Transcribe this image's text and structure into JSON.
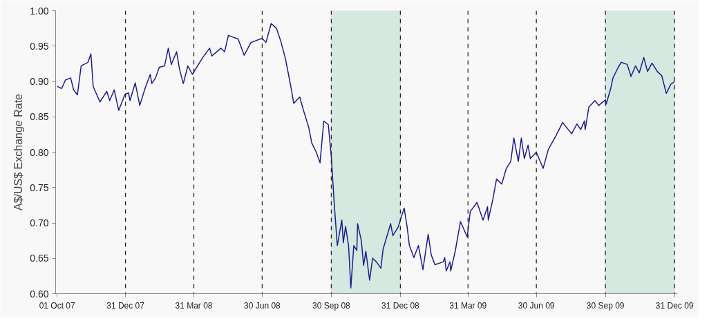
{
  "chart_data": {
    "type": "line",
    "ylabel": "A$/US$ Exchange Rate",
    "x": [
      "2007-10-01",
      "2007-10-07",
      "2007-10-12",
      "2007-10-19",
      "2007-10-23",
      "2007-10-28",
      "2007-11-02",
      "2007-11-11",
      "2007-11-15",
      "2007-11-18",
      "2007-11-27",
      "2007-12-06",
      "2007-12-10",
      "2007-12-16",
      "2007-12-22",
      "2007-12-30",
      "2008-01-04",
      "2008-01-06",
      "2008-01-13",
      "2008-01-19",
      "2008-01-26",
      "2008-02-02",
      "2008-02-04",
      "2008-02-09",
      "2008-02-14",
      "2008-02-21",
      "2008-02-26",
      "2008-03-01",
      "2008-03-08",
      "2008-03-12",
      "2008-03-17",
      "2008-03-23",
      "2008-03-29",
      "2008-04-12",
      "2008-04-21",
      "2008-04-24",
      "2008-05-06",
      "2008-05-11",
      "2008-05-16",
      "2008-05-29",
      "2008-06-06",
      "2008-06-15",
      "2008-06-30",
      "2008-07-05",
      "2008-07-12",
      "2008-07-19",
      "2008-07-25",
      "2008-07-31",
      "2008-08-04",
      "2008-08-08",
      "2008-08-11",
      "2008-08-19",
      "2008-08-24",
      "2008-08-31",
      "2008-09-04",
      "2008-09-10",
      "2008-09-15",
      "2008-09-20",
      "2008-09-26",
      "2008-09-30",
      "2008-10-04",
      "2008-10-08",
      "2008-10-14",
      "2008-10-16",
      "2008-10-19",
      "2008-10-23",
      "2008-10-26",
      "2008-10-30",
      "2008-11-03",
      "2008-11-04",
      "2008-11-09",
      "2008-11-12",
      "2008-11-15",
      "2008-11-20",
      "2008-11-24",
      "2008-11-29",
      "2008-12-05",
      "2008-12-08",
      "2008-12-18",
      "2008-12-21",
      "2008-12-28",
      "2009-01-05",
      "2009-01-09",
      "2009-01-12",
      "2009-01-18",
      "2009-01-24",
      "2009-01-30",
      "2009-02-06",
      "2009-02-10",
      "2009-02-15",
      "2009-02-26",
      "2009-02-28",
      "2009-03-02",
      "2009-03-07",
      "2009-03-08",
      "2009-03-14",
      "2009-03-19",
      "2009-03-21",
      "2009-03-30",
      "2009-04-03",
      "2009-04-12",
      "2009-04-20",
      "2009-04-26",
      "2009-04-27",
      "2009-05-03",
      "2009-05-08",
      "2009-05-15",
      "2009-05-21",
      "2009-05-27",
      "2009-05-31",
      "2009-06-06",
      "2009-06-10",
      "2009-06-14",
      "2009-06-19",
      "2009-06-22",
      "2009-06-30",
      "2009-07-09",
      "2009-07-16",
      "2009-07-26",
      "2009-08-04",
      "2009-08-16",
      "2009-08-23",
      "2009-08-28",
      "2009-09-02",
      "2009-09-03",
      "2009-09-08",
      "2009-09-16",
      "2009-09-21",
      "2009-09-30",
      "2009-10-01",
      "2009-10-07",
      "2009-10-10",
      "2009-10-17",
      "2009-10-21",
      "2009-10-29",
      "2009-11-03",
      "2009-11-09",
      "2009-11-14",
      "2009-11-20",
      "2009-11-25",
      "2009-12-01",
      "2009-12-08",
      "2009-12-14",
      "2009-12-20",
      "2009-12-26",
      "2009-12-31"
    ],
    "series": [
      {
        "color": "#1c1c8c",
        "values": [
          0.893,
          0.89,
          0.902,
          0.905,
          0.888,
          0.881,
          0.922,
          0.927,
          0.939,
          0.893,
          0.871,
          0.886,
          0.873,
          0.888,
          0.859,
          0.881,
          0.884,
          0.873,
          0.898,
          0.866,
          0.89,
          0.91,
          0.897,
          0.905,
          0.92,
          0.922,
          0.947,
          0.924,
          0.942,
          0.917,
          0.897,
          0.922,
          0.91,
          0.934,
          0.947,
          0.936,
          0.947,
          0.942,
          0.965,
          0.96,
          0.937,
          0.955,
          0.961,
          0.955,
          0.982,
          0.975,
          0.956,
          0.932,
          0.91,
          0.888,
          0.869,
          0.878,
          0.859,
          0.835,
          0.813,
          0.8,
          0.785,
          0.844,
          0.839,
          0.794,
          0.726,
          0.668,
          0.704,
          0.672,
          0.695,
          0.668,
          0.608,
          0.668,
          0.661,
          0.699,
          0.675,
          0.64,
          0.66,
          0.619,
          0.65,
          0.645,
          0.636,
          0.663,
          0.699,
          0.682,
          0.694,
          0.721,
          0.694,
          0.668,
          0.651,
          0.668,
          0.634,
          0.684,
          0.655,
          0.641,
          0.645,
          0.651,
          0.632,
          0.645,
          0.632,
          0.66,
          0.69,
          0.702,
          0.68,
          0.716,
          0.729,
          0.704,
          0.723,
          0.704,
          0.733,
          0.762,
          0.755,
          0.777,
          0.787,
          0.82,
          0.787,
          0.82,
          0.791,
          0.81,
          0.791,
          0.8,
          0.777,
          0.804,
          0.823,
          0.842,
          0.826,
          0.84,
          0.832,
          0.844,
          0.832,
          0.864,
          0.873,
          0.866,
          0.874,
          0.868,
          0.89,
          0.905,
          0.92,
          0.927,
          0.924,
          0.907,
          0.922,
          0.912,
          0.934,
          0.914,
          0.926,
          0.914,
          0.908,
          0.883,
          0.896,
          0.9
        ]
      }
    ],
    "xlim": [
      "2007-09-29",
      "2010-01-04"
    ],
    "xticks": [
      {
        "value": "2007-10-01",
        "label": "01 Oct 07"
      },
      {
        "value": "2007-12-31",
        "label": "31 Dec 07"
      },
      {
        "value": "2008-03-31",
        "label": "31 Mar 08"
      },
      {
        "value": "2008-06-30",
        "label": "30 Jun 08"
      },
      {
        "value": "2008-09-30",
        "label": "30 Sep 08"
      },
      {
        "value": "2008-12-31",
        "label": "31 Dec 08"
      },
      {
        "value": "2009-03-31",
        "label": "31 Mar 09"
      },
      {
        "value": "2009-06-30",
        "label": "30 Jun 09"
      },
      {
        "value": "2009-09-30",
        "label": "30 Sep 09"
      },
      {
        "value": "2009-12-31",
        "label": "31 Dec 09"
      }
    ],
    "ylim": [
      0.6,
      1.0
    ],
    "yticks": [
      {
        "value": 0.6,
        "label": "0.60"
      },
      {
        "value": 0.65,
        "label": "0.65"
      },
      {
        "value": 0.7,
        "label": "0.70"
      },
      {
        "value": 0.75,
        "label": "0.75"
      },
      {
        "value": 0.8,
        "label": "0.80"
      },
      {
        "value": 0.85,
        "label": "0.85"
      },
      {
        "value": 0.9,
        "label": "0.90"
      },
      {
        "value": 0.95,
        "label": "0.95"
      },
      {
        "value": 1.0,
        "label": "1.00"
      }
    ],
    "grid": false,
    "marker": "none",
    "line_style": "solid",
    "ref_lines": [
      {
        "axis": "x",
        "value": "2007-12-31",
        "line_style": "dashed",
        "color": "#222222"
      },
      {
        "axis": "x",
        "value": "2008-03-31",
        "line_style": "dashed",
        "color": "#222222"
      },
      {
        "axis": "x",
        "value": "2008-06-30",
        "line_style": "dashed",
        "color": "#222222"
      },
      {
        "axis": "x",
        "value": "2008-09-30",
        "line_style": "dashed",
        "color": "#222222"
      },
      {
        "axis": "x",
        "value": "2008-12-31",
        "line_style": "dashed",
        "color": "#222222"
      },
      {
        "axis": "x",
        "value": "2009-03-31",
        "line_style": "dashed",
        "color": "#222222"
      },
      {
        "axis": "x",
        "value": "2009-06-30",
        "line_style": "dashed",
        "color": "#222222"
      },
      {
        "axis": "x",
        "value": "2009-09-30",
        "line_style": "dashed",
        "color": "#222222"
      },
      {
        "axis": "x",
        "value": "2009-12-31",
        "line_style": "dashed",
        "color": "#222222"
      }
    ],
    "bands": [
      {
        "axis": "x",
        "from": "2008-09-30",
        "to": "2008-12-31",
        "color": "#d6e8df"
      },
      {
        "axis": "x",
        "from": "2009-09-30",
        "to": "2009-12-31",
        "color": "#d6e8df"
      }
    ]
  }
}
